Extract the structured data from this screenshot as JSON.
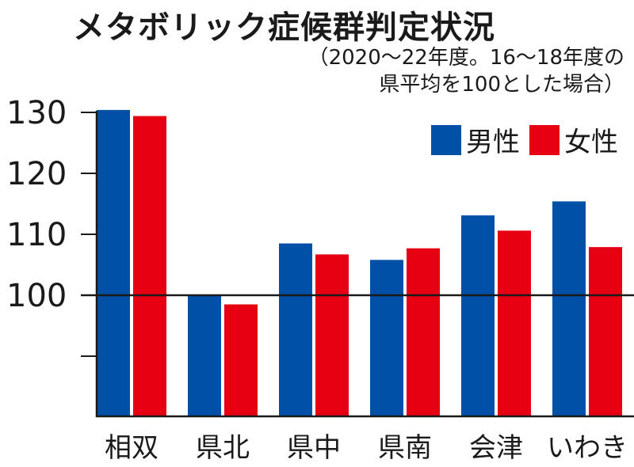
{
  "chart_data": {
    "type": "bar",
    "title": "メタボリック症候群判定状況",
    "subtitle_lines": [
      "（2020～22年度。16～18年度の",
      "県平均を100とした場合）"
    ],
    "categories": [
      "相双",
      "県北",
      "県中",
      "県南",
      "会津",
      "いわき"
    ],
    "series": [
      {
        "name": "男性",
        "color": "#0050a8",
        "values": [
          130.4,
          100.0,
          108.5,
          105.8,
          113.1,
          115.4
        ]
      },
      {
        "name": "女性",
        "color": "#e60012",
        "values": [
          129.4,
          98.5,
          106.7,
          107.7,
          110.6,
          107.9
        ]
      }
    ],
    "yticks": [
      100,
      110,
      120,
      130
    ],
    "ytick_labels": [
      "100",
      "110",
      "120",
      "130"
    ],
    "ylim": [
      80,
      131
    ],
    "reference_line": 100,
    "grid": false,
    "legend_position": "top-right"
  }
}
